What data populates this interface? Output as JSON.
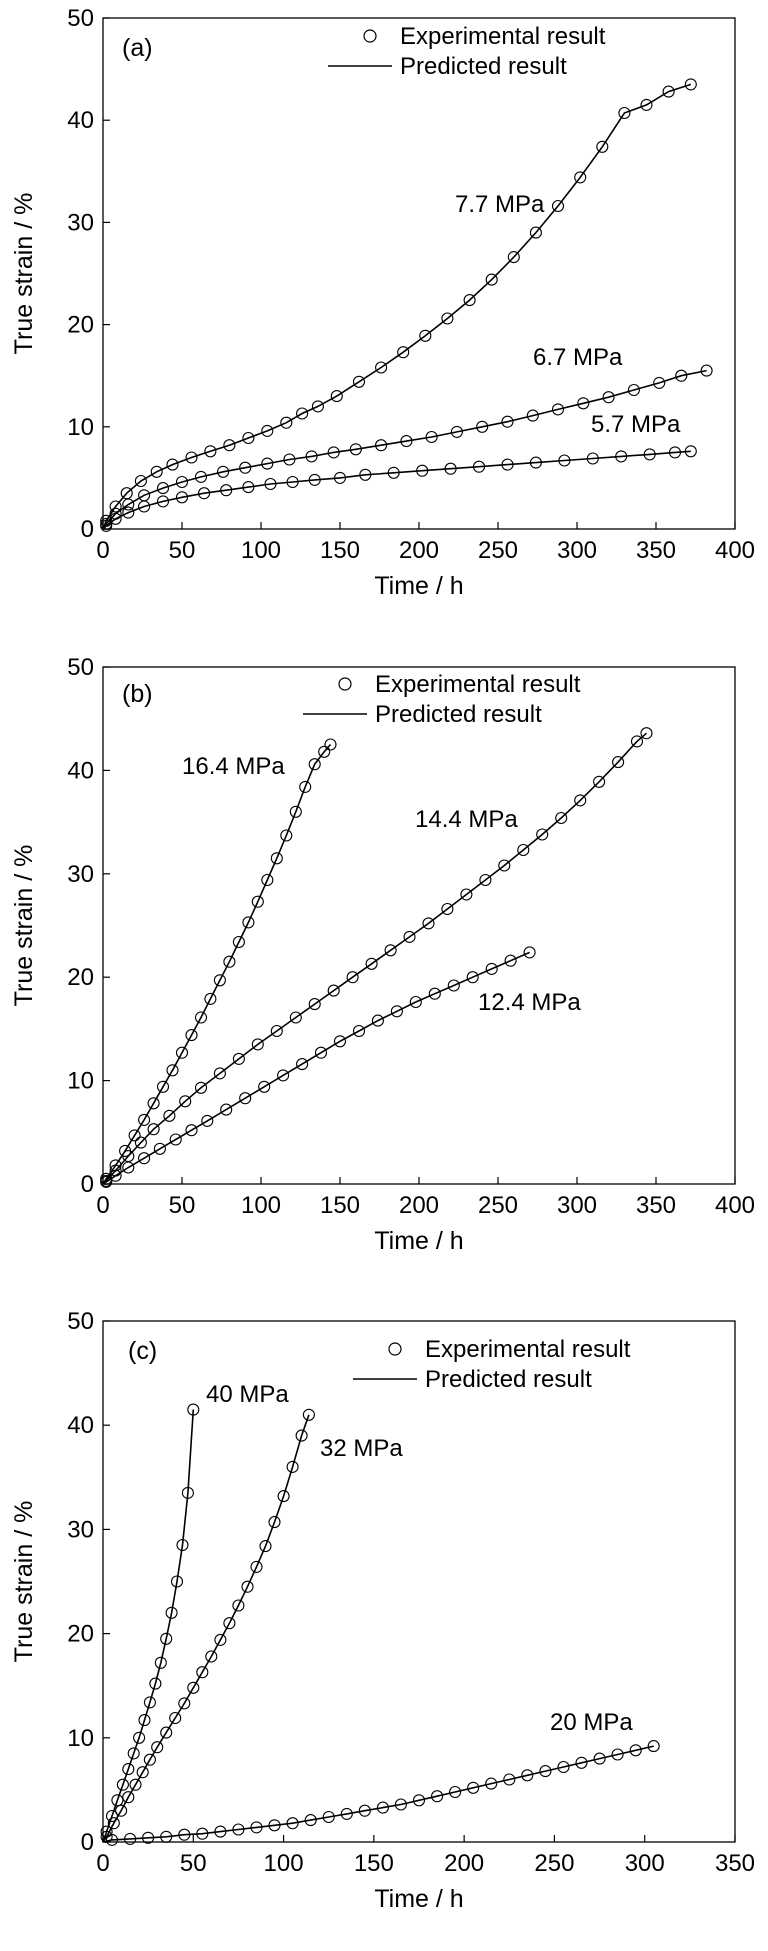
{
  "figure_title": "",
  "chart_data": [
    {
      "type": "scatter",
      "panel_label": "(a)",
      "xlabel": "Time / h",
      "ylabel": "True strain / %",
      "xlim": [
        0,
        400
      ],
      "ylim": [
        0,
        50
      ],
      "xticks": [
        0,
        50,
        100,
        150,
        200,
        250,
        300,
        350,
        400
      ],
      "yticks": [
        0,
        10,
        20,
        30,
        40,
        50
      ],
      "grid": false,
      "legend": {
        "position": "top-right",
        "entries": [
          {
            "label": "Experimental result",
            "marker": "open-circle"
          },
          {
            "label": "Predicted result",
            "marker": "line"
          }
        ]
      },
      "series": [
        {
          "name": "7.7 MPa",
          "x": [
            2,
            8,
            15,
            24,
            34,
            44,
            56,
            68,
            80,
            92,
            104,
            116,
            126,
            136,
            148,
            162,
            176,
            190,
            204,
            218,
            232,
            246,
            260,
            274,
            288,
            302,
            316,
            330,
            344,
            358,
            372
          ],
          "y": [
            0.8,
            2.2,
            3.5,
            4.7,
            5.6,
            6.3,
            7.0,
            7.6,
            8.2,
            8.9,
            9.6,
            10.4,
            11.3,
            12.0,
            13.0,
            14.4,
            15.8,
            17.3,
            18.9,
            20.6,
            22.4,
            24.4,
            26.6,
            29.0,
            31.6,
            34.4,
            37.4,
            40.7,
            41.5,
            42.8,
            43.5
          ]
        },
        {
          "name": "6.7 MPa",
          "x": [
            2,
            8,
            16,
            26,
            38,
            50,
            62,
            76,
            90,
            104,
            118,
            132,
            146,
            160,
            176,
            192,
            208,
            224,
            240,
            256,
            272,
            288,
            304,
            320,
            336,
            352,
            366,
            382
          ],
          "y": [
            0.5,
            1.5,
            2.4,
            3.3,
            4.0,
            4.6,
            5.1,
            5.6,
            6.0,
            6.4,
            6.8,
            7.1,
            7.5,
            7.8,
            8.2,
            8.6,
            9.0,
            9.5,
            10.0,
            10.5,
            11.1,
            11.7,
            12.3,
            12.9,
            13.6,
            14.3,
            15.0,
            15.5
          ]
        },
        {
          "name": "5.7 MPa",
          "x": [
            2,
            8,
            16,
            26,
            38,
            50,
            64,
            78,
            92,
            106,
            120,
            134,
            150,
            166,
            184,
            202,
            220,
            238,
            256,
            274,
            292,
            310,
            328,
            346,
            362,
            372
          ],
          "y": [
            0.3,
            1.0,
            1.6,
            2.2,
            2.7,
            3.1,
            3.5,
            3.8,
            4.1,
            4.4,
            4.6,
            4.8,
            5.0,
            5.3,
            5.5,
            5.7,
            5.9,
            6.1,
            6.3,
            6.5,
            6.7,
            6.9,
            7.1,
            7.3,
            7.5,
            7.6
          ]
        }
      ],
      "annotations": [
        "7.7 MPa",
        "6.7 MPa",
        "5.7 MPa"
      ]
    },
    {
      "type": "scatter",
      "panel_label": "(b)",
      "xlabel": "Time / h",
      "ylabel": "True strain / %",
      "xlim": [
        0,
        400
      ],
      "ylim": [
        0,
        50
      ],
      "xticks": [
        0,
        50,
        100,
        150,
        200,
        250,
        300,
        350,
        400
      ],
      "yticks": [
        0,
        10,
        20,
        30,
        40,
        50
      ],
      "grid": false,
      "legend": {
        "position": "top-right",
        "entries": [
          {
            "label": "Experimental result",
            "marker": "open-circle"
          },
          {
            "label": "Predicted result",
            "marker": "line"
          }
        ]
      },
      "series": [
        {
          "name": "16.4 MPa",
          "x": [
            2,
            8,
            14,
            20,
            26,
            32,
            38,
            44,
            50,
            56,
            62,
            68,
            74,
            80,
            86,
            92,
            98,
            104,
            110,
            116,
            122,
            128,
            134,
            140,
            144
          ],
          "y": [
            0.5,
            1.8,
            3.2,
            4.7,
            6.2,
            7.8,
            9.4,
            11.0,
            12.7,
            14.4,
            16.1,
            17.9,
            19.7,
            21.5,
            23.4,
            25.3,
            27.3,
            29.4,
            31.5,
            33.7,
            36.0,
            38.4,
            40.6,
            41.8,
            42.5
          ]
        },
        {
          "name": "14.4 MPa",
          "x": [
            2,
            8,
            16,
            24,
            32,
            42,
            52,
            62,
            74,
            86,
            98,
            110,
            122,
            134,
            146,
            158,
            170,
            182,
            194,
            206,
            218,
            230,
            242,
            254,
            266,
            278,
            290,
            302,
            314,
            326,
            338,
            344
          ],
          "y": [
            0.3,
            1.3,
            2.7,
            4.0,
            5.3,
            6.6,
            8.0,
            9.3,
            10.7,
            12.1,
            13.5,
            14.8,
            16.1,
            17.4,
            18.7,
            20.0,
            21.3,
            22.6,
            23.9,
            25.2,
            26.6,
            28.0,
            29.4,
            30.8,
            32.3,
            33.8,
            35.4,
            37.1,
            38.9,
            40.8,
            42.8,
            43.6
          ]
        },
        {
          "name": "12.4 MPa",
          "x": [
            2,
            8,
            16,
            26,
            36,
            46,
            56,
            66,
            78,
            90,
            102,
            114,
            126,
            138,
            150,
            162,
            174,
            186,
            198,
            210,
            222,
            234,
            246,
            258,
            270
          ],
          "y": [
            0.2,
            0.8,
            1.6,
            2.5,
            3.4,
            4.3,
            5.2,
            6.1,
            7.2,
            8.3,
            9.4,
            10.5,
            11.6,
            12.7,
            13.8,
            14.8,
            15.8,
            16.7,
            17.6,
            18.4,
            19.2,
            20.0,
            20.8,
            21.6,
            22.4
          ]
        }
      ],
      "annotations": [
        "16.4 MPa",
        "14.4 MPa",
        "12.4 MPa"
      ]
    },
    {
      "type": "scatter",
      "panel_label": "(c)",
      "xlabel": "Time / h",
      "ylabel": "True strain / %",
      "xlim": [
        0,
        350
      ],
      "ylim": [
        0,
        50
      ],
      "xticks": [
        0,
        50,
        100,
        150,
        200,
        250,
        300,
        350
      ],
      "yticks": [
        0,
        10,
        20,
        30,
        40,
        50
      ],
      "grid": false,
      "legend": {
        "position": "top-right",
        "entries": [
          {
            "label": "Experimental result",
            "marker": "open-circle"
          },
          {
            "label": "Predicted result",
            "marker": "line"
          }
        ]
      },
      "series": [
        {
          "name": "40 MPa",
          "x": [
            2,
            5,
            8,
            11,
            14,
            17,
            20,
            23,
            26,
            29,
            32,
            35,
            38,
            41,
            44,
            47,
            50
          ],
          "y": [
            1.0,
            2.5,
            4.0,
            5.5,
            7.0,
            8.5,
            10.0,
            11.7,
            13.4,
            15.2,
            17.2,
            19.5,
            22.0,
            25.0,
            28.5,
            33.5,
            41.5
          ]
        },
        {
          "name": "32 MPa",
          "x": [
            2,
            6,
            10,
            14,
            18,
            22,
            26,
            30,
            35,
            40,
            45,
            50,
            55,
            60,
            65,
            70,
            75,
            80,
            85,
            90,
            95,
            100,
            105,
            110,
            114
          ],
          "y": [
            0.5,
            1.8,
            3.0,
            4.3,
            5.5,
            6.7,
            7.9,
            9.1,
            10.5,
            11.9,
            13.3,
            14.8,
            16.3,
            17.8,
            19.4,
            21.0,
            22.7,
            24.5,
            26.4,
            28.4,
            30.7,
            33.2,
            36.0,
            39.0,
            41.0
          ]
        },
        {
          "name": "20 MPa",
          "x": [
            5,
            15,
            25,
            35,
            45,
            55,
            65,
            75,
            85,
            95,
            105,
            115,
            125,
            135,
            145,
            155,
            165,
            175,
            185,
            195,
            205,
            215,
            225,
            235,
            245,
            255,
            265,
            275,
            285,
            295,
            305
          ],
          "y": [
            0.2,
            0.3,
            0.4,
            0.5,
            0.7,
            0.8,
            1.0,
            1.2,
            1.4,
            1.6,
            1.8,
            2.1,
            2.4,
            2.7,
            3.0,
            3.3,
            3.6,
            4.0,
            4.4,
            4.8,
            5.2,
            5.6,
            6.0,
            6.4,
            6.8,
            7.2,
            7.6,
            8.0,
            8.4,
            8.8,
            9.2
          ]
        }
      ],
      "annotations": [
        "40 MPa",
        "32 MPa",
        "20 MPa"
      ]
    }
  ]
}
